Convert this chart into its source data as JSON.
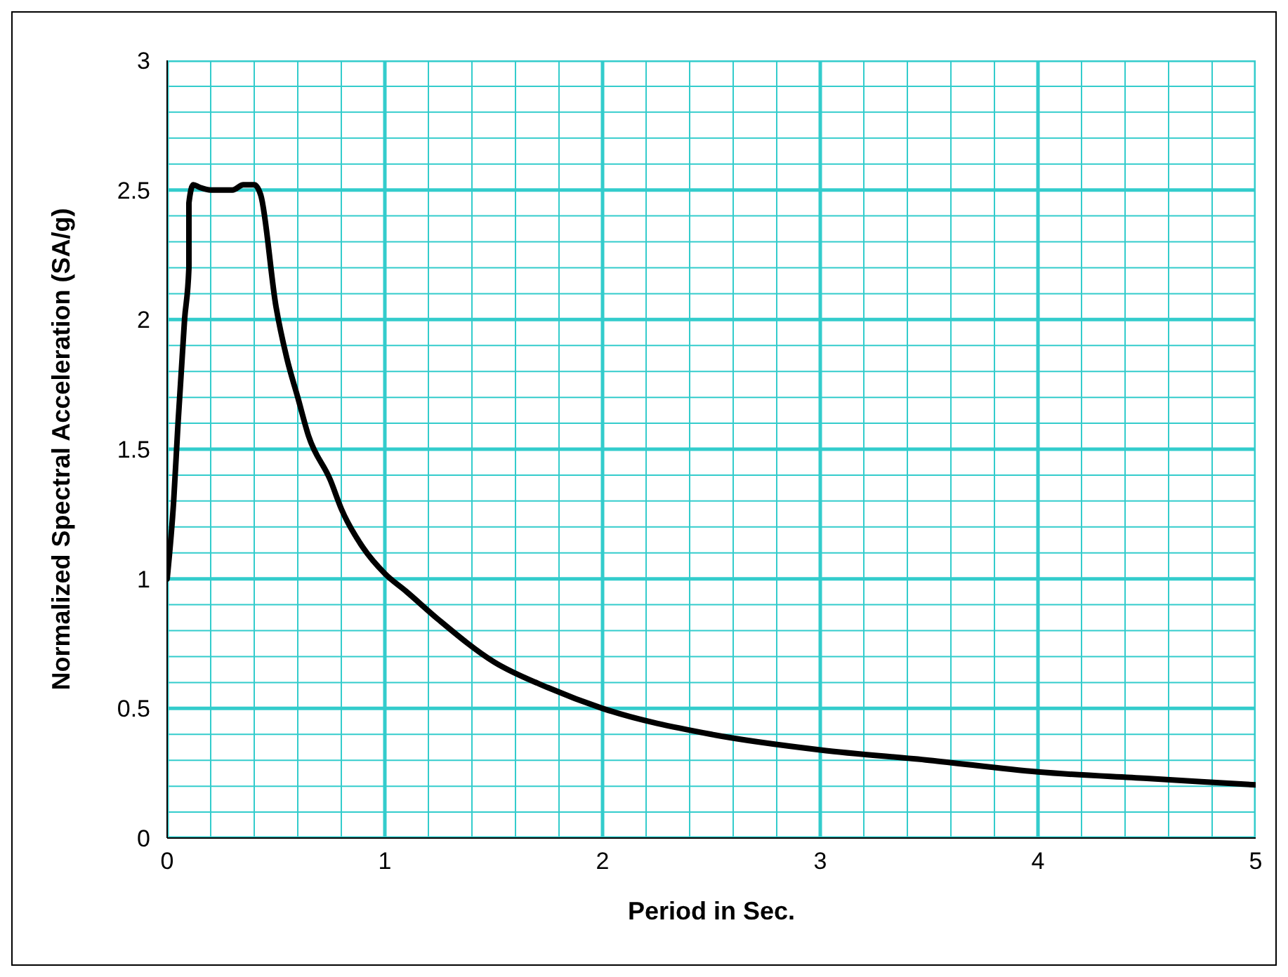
{
  "chart_data": {
    "type": "line",
    "xlabel": "Period in Sec.",
    "ylabel": "Normalized Spectral Acceleration (SA/g)",
    "x": [
      0,
      0.03,
      0.05,
      0.08,
      0.1,
      0.1,
      0.12,
      0.15,
      0.2,
      0.3,
      0.35,
      0.4,
      0.43,
      0.5,
      0.55,
      0.6,
      0.65,
      0.75,
      0.8,
      0.9,
      1,
      1.1,
      1.25,
      1.5,
      1.75,
      2,
      2.5,
      3,
      3.5,
      4,
      4.5,
      5
    ],
    "series": [
      {
        "color": "#000000",
        "values": [
          1,
          1.3,
          1.6,
          2.0,
          2.2,
          2.45,
          2.52,
          2.51,
          2.5,
          2.5,
          2.52,
          2.52,
          2.48,
          2.05,
          1.85,
          1.7,
          1.55,
          1.38,
          1.27,
          1.12,
          1.02,
          0.95,
          0.84,
          0.68,
          0.58,
          0.5,
          0.4,
          0.34,
          0.3,
          0.255,
          0.23,
          0.205
        ]
      }
    ],
    "xlim": [
      0,
      5
    ],
    "xticks": [
      0,
      {
        "value": 0.2,
        "label": null
      },
      {
        "value": 0.4,
        "label": null
      },
      {
        "value": 0.6,
        "label": null
      },
      {
        "value": 0.8,
        "label": null
      },
      1,
      {
        "value": 1.2,
        "label": null
      },
      {
        "value": 1.4,
        "label": null
      },
      {
        "value": 1.6,
        "label": null
      },
      {
        "value": 1.8,
        "label": null
      },
      2,
      {
        "value": 2.2,
        "label": null
      },
      {
        "value": 2.4,
        "label": null
      },
      {
        "value": 2.6,
        "label": null
      },
      {
        "value": 2.8,
        "label": null
      },
      3,
      {
        "value": 3.2,
        "label": null
      },
      {
        "value": 3.4,
        "label": null
      },
      {
        "value": 3.6,
        "label": null
      },
      {
        "value": 3.8,
        "label": null
      },
      4,
      {
        "value": 4.2,
        "label": null
      },
      {
        "value": 4.4,
        "label": null
      },
      {
        "value": 4.6,
        "label": null
      },
      {
        "value": 4.8,
        "label": null
      },
      5
    ],
    "ylim": [
      0,
      3
    ],
    "yticks": [
      0,
      {
        "value": 0.1,
        "label": null
      },
      {
        "value": 0.2,
        "label": null
      },
      {
        "value": 0.3,
        "label": null
      },
      {
        "value": 0.4,
        "label": null
      },
      0.5,
      {
        "value": 0.6,
        "label": null
      },
      {
        "value": 0.7,
        "label": null
      },
      {
        "value": 0.8,
        "label": null
      },
      {
        "value": 0.9,
        "label": null
      },
      1,
      {
        "value": 1.1,
        "label": null
      },
      {
        "value": 1.2,
        "label": null
      },
      {
        "value": 1.3,
        "label": null
      },
      {
        "value": 1.4,
        "label": null
      },
      1.5,
      {
        "value": 1.6,
        "label": null
      },
      {
        "value": 1.7,
        "label": null
      },
      {
        "value": 1.8,
        "label": null
      },
      {
        "value": 1.9,
        "label": null
      },
      2,
      {
        "value": 2.1,
        "label": null
      },
      {
        "value": 2.2,
        "label": null
      },
      {
        "value": 2.3,
        "label": null
      },
      {
        "value": 2.4,
        "label": null
      },
      2.5,
      {
        "value": 2.6,
        "label": null
      },
      {
        "value": 2.7,
        "label": null
      },
      {
        "value": 2.8,
        "label": null
      },
      {
        "value": 2.9,
        "label": null
      },
      3
    ],
    "grid": true,
    "marker": "none",
    "line_style": "solid"
  }
}
